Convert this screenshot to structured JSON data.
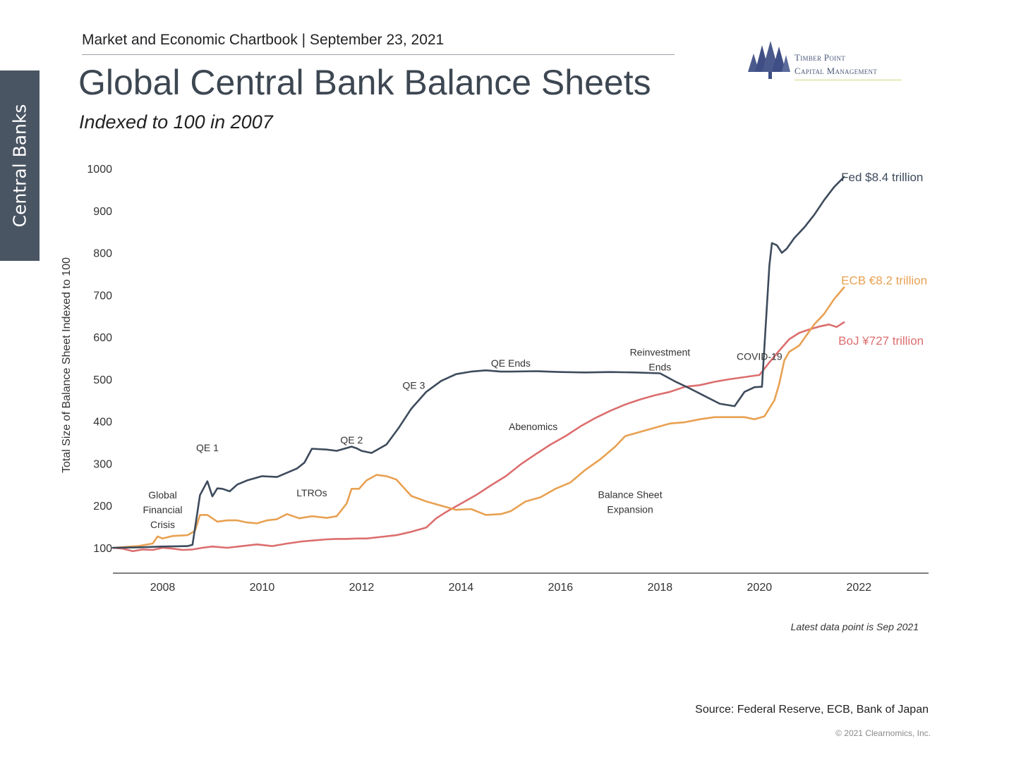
{
  "side_tab": "Central Banks",
  "header": "Market and Economic Chartbook | September 23, 2021",
  "logo": {
    "line1": "Timber Point",
    "line2": "Capital Management"
  },
  "colors": {
    "fed": "#3d4b5c",
    "ecb": "#e8a152",
    "boj": "#dc6e6e",
    "axis": "#333333"
  },
  "chart_data": {
    "type": "line",
    "title": "Global Central Bank Balance Sheets",
    "subtitle": "Indexed to 100 in 2007",
    "ylabel": "Total Size of Balance Sheet Indexed to 100",
    "xlabel": "",
    "xlim": [
      2007.0,
      2023.4
    ],
    "ylim": [
      40,
      1000
    ],
    "x_ticks": [
      "2008",
      "2010",
      "2012",
      "2014",
      "2016",
      "2018",
      "2020",
      "2022"
    ],
    "y_ticks": [
      "100",
      "200",
      "300",
      "400",
      "500",
      "600",
      "700",
      "800",
      "900",
      "1000"
    ],
    "grid": false,
    "series": [
      {
        "name": "Fed $8.4 trillion",
        "color": "#3d4b5c",
        "x": [
          2007.0,
          2007.5,
          2008.0,
          2008.5,
          2008.6,
          2008.75,
          2008.9,
          2009.0,
          2009.1,
          2009.2,
          2009.35,
          2009.5,
          2009.7,
          2010.0,
          2010.3,
          2010.7,
          2010.85,
          2011.0,
          2011.3,
          2011.5,
          2011.8,
          2011.9,
          2012.0,
          2012.2,
          2012.5,
          2012.75,
          2013.0,
          2013.3,
          2013.6,
          2013.9,
          2014.2,
          2014.5,
          2014.8,
          2015.0,
          2015.5,
          2016.0,
          2016.5,
          2017.0,
          2017.5,
          2018.0,
          2018.3,
          2018.6,
          2018.9,
          2019.2,
          2019.5,
          2019.7,
          2019.9,
          2020.05,
          2020.2,
          2020.25,
          2020.35,
          2020.45,
          2020.55,
          2020.7,
          2020.9,
          2021.1,
          2021.3,
          2021.5,
          2021.7
        ],
        "y": [
          100,
          101,
          103,
          104,
          107,
          225,
          258,
          222,
          241,
          240,
          234,
          250,
          260,
          270,
          268,
          288,
          302,
          335,
          333,
          330,
          340,
          336,
          330,
          325,
          345,
          385,
          430,
          470,
          496,
          512,
          518,
          521,
          518,
          518,
          519,
          517,
          516,
          517,
          516,
          514,
          495,
          478,
          460,
          442,
          436,
          470,
          481,
          482,
          770,
          823,
          818,
          800,
          810,
          835,
          860,
          890,
          925,
          956,
          980
        ]
      },
      {
        "name": "ECB €8.2 trillion",
        "color": "#e8a152",
        "x": [
          2007.0,
          2007.5,
          2007.8,
          2007.9,
          2008.0,
          2008.2,
          2008.5,
          2008.65,
          2008.75,
          2008.9,
          2009.1,
          2009.3,
          2009.5,
          2009.7,
          2009.9,
          2010.1,
          2010.3,
          2010.5,
          2010.75,
          2011.0,
          2011.3,
          2011.5,
          2011.7,
          2011.8,
          2011.95,
          2012.1,
          2012.3,
          2012.5,
          2012.7,
          2013.0,
          2013.3,
          2013.6,
          2013.9,
          2014.2,
          2014.5,
          2014.8,
          2015.0,
          2015.3,
          2015.6,
          2015.9,
          2016.2,
          2016.5,
          2016.8,
          2017.1,
          2017.3,
          2017.6,
          2017.9,
          2018.2,
          2018.5,
          2018.8,
          2019.1,
          2019.4,
          2019.7,
          2019.9,
          2020.1,
          2020.3,
          2020.4,
          2020.5,
          2020.6,
          2020.8,
          2020.95,
          2021.1,
          2021.3,
          2021.5,
          2021.7
        ],
        "y": [
          100,
          104,
          110,
          127,
          122,
          128,
          130,
          140,
          178,
          178,
          162,
          165,
          165,
          160,
          158,
          165,
          168,
          180,
          170,
          175,
          171,
          175,
          205,
          240,
          240,
          260,
          273,
          270,
          262,
          223,
          210,
          200,
          190,
          192,
          178,
          180,
          187,
          210,
          220,
          240,
          255,
          285,
          310,
          340,
          365,
          375,
          385,
          395,
          398,
          405,
          410,
          410,
          410,
          405,
          412,
          450,
          490,
          545,
          565,
          580,
          605,
          630,
          655,
          690,
          718
        ]
      },
      {
        "name": "BoJ ¥727 trillion",
        "color": "#dc6e6e",
        "x": [
          2007.0,
          2007.2,
          2007.4,
          2007.6,
          2007.8,
          2008.0,
          2008.2,
          2008.4,
          2008.6,
          2008.8,
          2009.0,
          2009.3,
          2009.6,
          2009.9,
          2010.2,
          2010.5,
          2010.8,
          2011.1,
          2011.3,
          2011.5,
          2011.7,
          2011.9,
          2012.1,
          2012.4,
          2012.7,
          2013.0,
          2013.3,
          2013.5,
          2013.7,
          2014.0,
          2014.3,
          2014.6,
          2014.9,
          2015.2,
          2015.5,
          2015.8,
          2016.1,
          2016.4,
          2016.7,
          2017.0,
          2017.3,
          2017.6,
          2017.9,
          2018.2,
          2018.5,
          2018.8,
          2019.1,
          2019.4,
          2019.7,
          2020.0,
          2020.2,
          2020.4,
          2020.6,
          2020.8,
          2021.0,
          2021.2,
          2021.4,
          2021.55,
          2021.7
        ],
        "y": [
          100,
          98,
          92,
          96,
          95,
          100,
          98,
          95,
          96,
          100,
          103,
          100,
          104,
          108,
          104,
          110,
          115,
          118,
          120,
          121,
          121,
          122,
          122,
          126,
          130,
          138,
          148,
          170,
          185,
          205,
          225,
          248,
          270,
          298,
          322,
          345,
          365,
          388,
          408,
          425,
          440,
          452,
          462,
          470,
          482,
          486,
          494,
          500,
          505,
          510,
          540,
          568,
          595,
          610,
          618,
          625,
          630,
          624,
          635
        ]
      }
    ],
    "annotations": [
      {
        "text": [
          "Global",
          "Financial",
          "Crisis"
        ],
        "x": 2008.0,
        "y": 217
      },
      {
        "text": [
          "QE 1"
        ],
        "x": 2008.9,
        "y": 329
      },
      {
        "text": [
          "LTROs"
        ],
        "x": 2011.0,
        "y": 222
      },
      {
        "text": [
          "QE 2"
        ],
        "x": 2011.8,
        "y": 348
      },
      {
        "text": [
          "QE 3"
        ],
        "x": 2013.05,
        "y": 477
      },
      {
        "text": [
          "QE Ends"
        ],
        "x": 2015.0,
        "y": 530
      },
      {
        "text": [
          "Abenomics"
        ],
        "x": 2015.45,
        "y": 379
      },
      {
        "text": [
          "Reinvestment",
          "Ends"
        ],
        "x": 2018.0,
        "y": 556
      },
      {
        "text": [
          "Balance Sheet",
          "Expansion"
        ],
        "x": 2017.4,
        "y": 218
      },
      {
        "text": [
          "COVID-19"
        ],
        "x": 2020.0,
        "y": 546
      }
    ]
  },
  "note": "Latest data point is Sep 2021",
  "source": "Source: Federal Reserve, ECB, Bank of Japan",
  "copyright": "© 2021 Clearnomics, Inc."
}
